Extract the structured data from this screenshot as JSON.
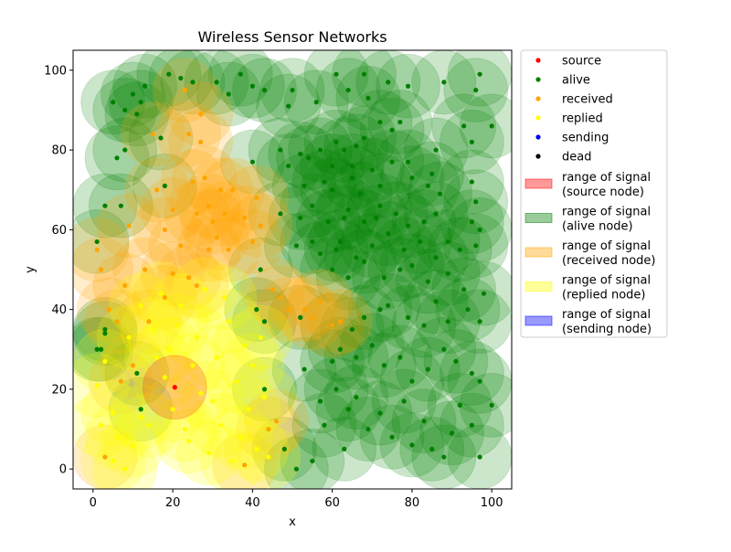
{
  "chart_data": {
    "type": "scatter",
    "title": "Wireless Sensor Networks",
    "xlabel": "x",
    "ylabel": "y",
    "xlim": [
      -5,
      105
    ],
    "ylim": [
      -5,
      105
    ],
    "xticks": [
      0,
      20,
      40,
      60,
      80,
      100
    ],
    "yticks": [
      0,
      20,
      40,
      60,
      80,
      100
    ],
    "signal_radius": 8,
    "legend_position": "outside-right",
    "legend": [
      {
        "kind": "marker",
        "label": "source",
        "color": "#ff0000"
      },
      {
        "kind": "marker",
        "label": "alive",
        "color": "#008000"
      },
      {
        "kind": "marker",
        "label": "received",
        "color": "#ffa500"
      },
      {
        "kind": "marker",
        "label": "replied",
        "color": "#ffff00"
      },
      {
        "kind": "marker",
        "label": "sending",
        "color": "#0000ff"
      },
      {
        "kind": "marker",
        "label": "dead",
        "color": "#000000"
      },
      {
        "kind": "patch",
        "label": [
          "range of signal",
          "(source node)"
        ],
        "color": "#ff0000"
      },
      {
        "kind": "patch",
        "label": [
          "range of signal",
          "(alive node)"
        ],
        "color": "#008000"
      },
      {
        "kind": "patch",
        "label": [
          "range of signal",
          "(received node)"
        ],
        "color": "#ffa500"
      },
      {
        "kind": "patch",
        "label": [
          "range of signal",
          "(replied node)"
        ],
        "color": "#ffff00"
      },
      {
        "kind": "patch",
        "label": [
          "range of signal",
          "(sending node)"
        ],
        "color": "#0000ff"
      }
    ],
    "series": [
      {
        "name": "source",
        "color": "#ff0000",
        "points": [
          [
            20.5,
            20.5
          ]
        ]
      },
      {
        "name": "alive",
        "color": "#008000",
        "points": [
          [
            1,
            57
          ],
          [
            2,
            30
          ],
          [
            3,
            35
          ],
          [
            3,
            66
          ],
          [
            5,
            92
          ],
          [
            6,
            78
          ],
          [
            7,
            66
          ],
          [
            8,
            90
          ],
          [
            8,
            80
          ],
          [
            10,
            94
          ],
          [
            11,
            89
          ],
          [
            12,
            15
          ],
          [
            12,
            92
          ],
          [
            13,
            96
          ],
          [
            17,
            83
          ],
          [
            19,
            99
          ],
          [
            22,
            98
          ],
          [
            25,
            97
          ],
          [
            31,
            97
          ],
          [
            37,
            99
          ],
          [
            34,
            94
          ],
          [
            40,
            96
          ],
          [
            43,
            95
          ],
          [
            50,
            95
          ],
          [
            49,
            91
          ],
          [
            56,
            92
          ],
          [
            61,
            99
          ],
          [
            68,
            99
          ],
          [
            64,
            95
          ],
          [
            69,
            93
          ],
          [
            74,
            97
          ],
          [
            79,
            96
          ],
          [
            88,
            97
          ],
          [
            97,
            99
          ],
          [
            96,
            95
          ],
          [
            47,
            80
          ],
          [
            52,
            79
          ],
          [
            57,
            80
          ],
          [
            61,
            82
          ],
          [
            63,
            80
          ],
          [
            66,
            81
          ],
          [
            68,
            83
          ],
          [
            72,
            87
          ],
          [
            75,
            85
          ],
          [
            77,
            87
          ],
          [
            86,
            80
          ],
          [
            93,
            86
          ],
          [
            95,
            82
          ],
          [
            100,
            86
          ],
          [
            40,
            77
          ],
          [
            49,
            76
          ],
          [
            54,
            78
          ],
          [
            60,
            76
          ],
          [
            65,
            76
          ],
          [
            70,
            75
          ],
          [
            75,
            77
          ],
          [
            79,
            77
          ],
          [
            85,
            74
          ],
          [
            53,
            71
          ],
          [
            58,
            72
          ],
          [
            60,
            70
          ],
          [
            65,
            73
          ],
          [
            67,
            69
          ],
          [
            72,
            71
          ],
          [
            80,
            73
          ],
          [
            84,
            71
          ],
          [
            87,
            69
          ],
          [
            95,
            72
          ],
          [
            96,
            67
          ],
          [
            47,
            64
          ],
          [
            52,
            63
          ],
          [
            55,
            66
          ],
          [
            59,
            62
          ],
          [
            63,
            63
          ],
          [
            64,
            65
          ],
          [
            68,
            62
          ],
          [
            71,
            63
          ],
          [
            72,
            66
          ],
          [
            76,
            64
          ],
          [
            79,
            61
          ],
          [
            83,
            62
          ],
          [
            86,
            64
          ],
          [
            95,
            62
          ],
          [
            97,
            60
          ],
          [
            51,
            56
          ],
          [
            55,
            57
          ],
          [
            57,
            54
          ],
          [
            61,
            55
          ],
          [
            62,
            57
          ],
          [
            66,
            53
          ],
          [
            70,
            56
          ],
          [
            74,
            59
          ],
          [
            78,
            55
          ],
          [
            82,
            57
          ],
          [
            86,
            53
          ],
          [
            89,
            57
          ],
          [
            92,
            55
          ],
          [
            96,
            56
          ],
          [
            60,
            50
          ],
          [
            64,
            48
          ],
          [
            68,
            52
          ],
          [
            73,
            48
          ],
          [
            77,
            50
          ],
          [
            80,
            51
          ],
          [
            84,
            47
          ],
          [
            89,
            49
          ],
          [
            93,
            45
          ],
          [
            98,
            44
          ],
          [
            42,
            50
          ],
          [
            41,
            40
          ],
          [
            43,
            37
          ],
          [
            52,
            38
          ],
          [
            60,
            36
          ],
          [
            65,
            35
          ],
          [
            68,
            38
          ],
          [
            72,
            40
          ],
          [
            74,
            41
          ],
          [
            79,
            38
          ],
          [
            83,
            36
          ],
          [
            86,
            42
          ],
          [
            89,
            37
          ],
          [
            94,
            40
          ],
          [
            97,
            37
          ],
          [
            60,
            27
          ],
          [
            62,
            30
          ],
          [
            66,
            28
          ],
          [
            70,
            31
          ],
          [
            73,
            26
          ],
          [
            77,
            28
          ],
          [
            80,
            22
          ],
          [
            84,
            25
          ],
          [
            88,
            30
          ],
          [
            91,
            27
          ],
          [
            95,
            24
          ],
          [
            97,
            22
          ],
          [
            48,
            5
          ],
          [
            51,
            0
          ],
          [
            55,
            2
          ],
          [
            58,
            11
          ],
          [
            61,
            20
          ],
          [
            64,
            15
          ],
          [
            66,
            18
          ],
          [
            69,
            10
          ],
          [
            72,
            14
          ],
          [
            75,
            8
          ],
          [
            78,
            17
          ],
          [
            80,
            6
          ],
          [
            83,
            12
          ],
          [
            85,
            5
          ],
          [
            88,
            3
          ],
          [
            90,
            9
          ],
          [
            92,
            16
          ],
          [
            95,
            11
          ],
          [
            97,
            3
          ],
          [
            100,
            16
          ],
          [
            53,
            25
          ],
          [
            57,
            17
          ],
          [
            63,
            5
          ],
          [
            43,
            20
          ],
          [
            11,
            24
          ],
          [
            1,
            30
          ],
          [
            3,
            34
          ],
          [
            18,
            71
          ]
        ]
      },
      {
        "name": "received",
        "color": "#ffa500",
        "points": [
          [
            1,
            55
          ],
          [
            2,
            50
          ],
          [
            4,
            40
          ],
          [
            6,
            37
          ],
          [
            8,
            46
          ],
          [
            9,
            61
          ],
          [
            13,
            50
          ],
          [
            15,
            84
          ],
          [
            16,
            70
          ],
          [
            18,
            60
          ],
          [
            20,
            65
          ],
          [
            22,
            56
          ],
          [
            23,
            95
          ],
          [
            24,
            84
          ],
          [
            25,
            72
          ],
          [
            26,
            64
          ],
          [
            27,
            89
          ],
          [
            28,
            73
          ],
          [
            29,
            66
          ],
          [
            30,
            62
          ],
          [
            31,
            58
          ],
          [
            32,
            70
          ],
          [
            33,
            64
          ],
          [
            34,
            55
          ],
          [
            27,
            82
          ],
          [
            29,
            55
          ],
          [
            35,
            70
          ],
          [
            38,
            63
          ],
          [
            40,
            57
          ],
          [
            41,
            68
          ],
          [
            42,
            61
          ],
          [
            45,
            45
          ],
          [
            47,
            43
          ],
          [
            49,
            40
          ],
          [
            53,
            40
          ],
          [
            55,
            38
          ],
          [
            57,
            42
          ],
          [
            60,
            36
          ],
          [
            62,
            37
          ],
          [
            44,
            10
          ],
          [
            46,
            12
          ],
          [
            38,
            1
          ],
          [
            24,
            48
          ],
          [
            26,
            46
          ],
          [
            20,
            49
          ],
          [
            18,
            43
          ],
          [
            14,
            37
          ],
          [
            10,
            26
          ],
          [
            7,
            22
          ],
          [
            3,
            3
          ]
        ]
      },
      {
        "name": "replied",
        "color": "#ffff00",
        "points": [
          [
            1,
            21
          ],
          [
            3,
            27
          ],
          [
            5,
            14
          ],
          [
            6,
            8
          ],
          [
            8,
            0
          ],
          [
            10,
            6
          ],
          [
            12,
            13
          ],
          [
            14,
            11
          ],
          [
            15,
            35
          ],
          [
            16,
            28
          ],
          [
            17,
            44
          ],
          [
            18,
            23
          ],
          [
            19,
            30
          ],
          [
            20,
            15
          ],
          [
            21,
            36
          ],
          [
            22,
            41
          ],
          [
            23,
            10
          ],
          [
            24,
            7
          ],
          [
            25,
            26
          ],
          [
            26,
            33
          ],
          [
            27,
            19
          ],
          [
            28,
            45
          ],
          [
            29,
            4
          ],
          [
            30,
            17
          ],
          [
            31,
            28
          ],
          [
            32,
            11
          ],
          [
            33,
            43
          ],
          [
            34,
            37
          ],
          [
            35,
            2
          ],
          [
            36,
            22
          ],
          [
            37,
            8
          ],
          [
            38,
            31
          ],
          [
            39,
            15
          ],
          [
            40,
            26
          ],
          [
            41,
            5
          ],
          [
            42,
            33
          ],
          [
            43,
            18
          ],
          [
            44,
            3
          ],
          [
            9,
            33
          ],
          [
            12,
            41
          ],
          [
            2,
            11
          ],
          [
            5,
            2
          ]
        ]
      },
      {
        "name": "sending",
        "color": "#0000ff",
        "points": []
      },
      {
        "name": "dead",
        "color": "#000000",
        "points": []
      }
    ]
  }
}
